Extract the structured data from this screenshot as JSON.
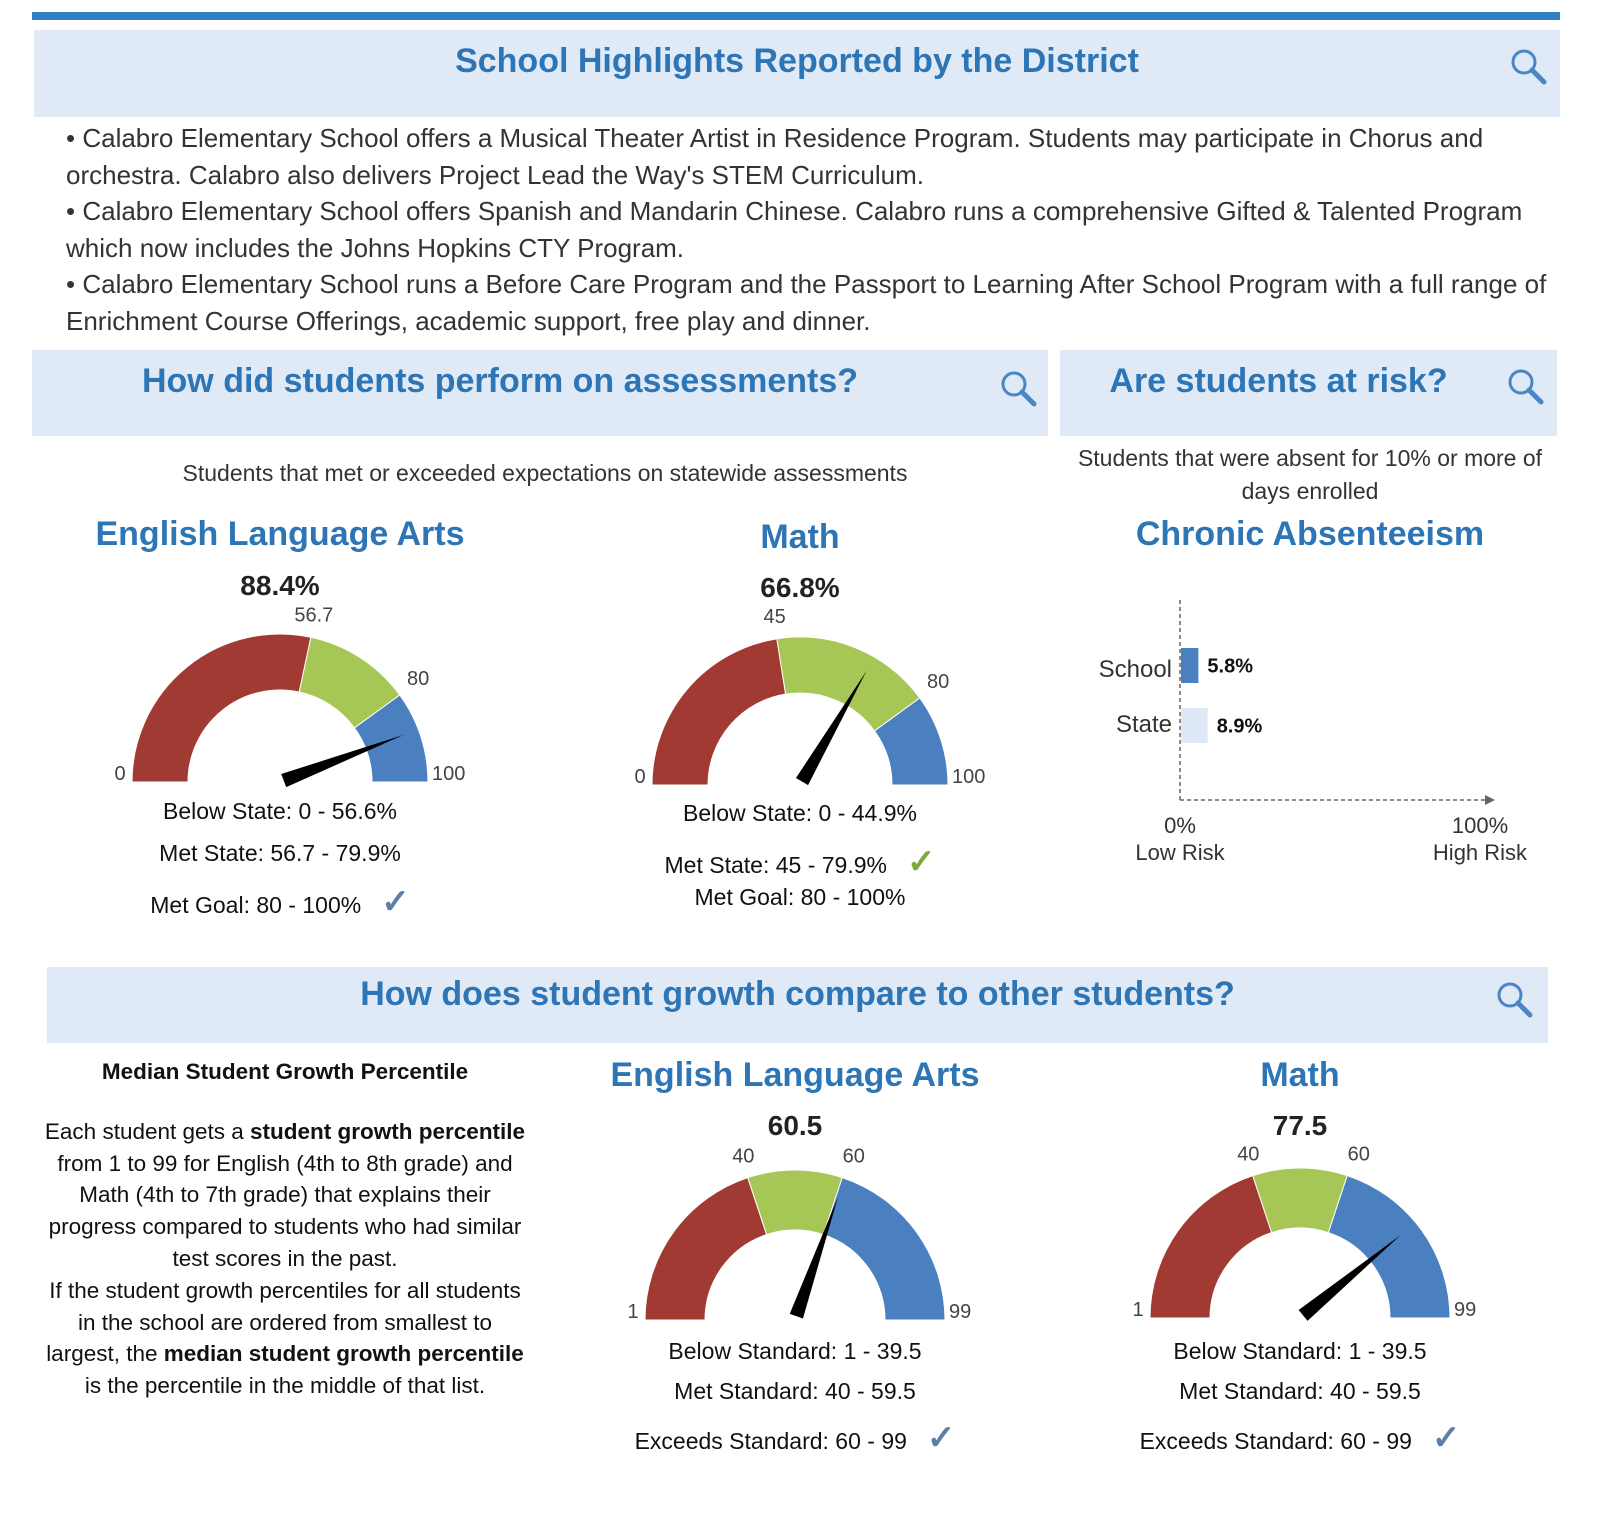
{
  "colors": {
    "accent": "#2e75b6",
    "header_bg": "#dfeaf6",
    "red": "#a03a32",
    "green": "#a6c655",
    "blue": "#4a80c0",
    "check_blue": "#5b7fa6",
    "check_green": "#7ea83a",
    "state_bar": "#dfe9f5"
  },
  "highlights": {
    "title": "School Highlights Reported by the District",
    "icon": "magnifier-icon",
    "bullets": [
      "• Calabro Elementary School offers a Musical Theater Artist in Residence Program. Students may participate in Chorus and orchestra. Calabro also delivers Project Lead the Way's STEM Curriculum.",
      "• Calabro Elementary School offers Spanish and Mandarin Chinese. Calabro runs a comprehensive Gifted & Talented Program which now includes the Johns Hopkins CTY Program.",
      "• Calabro Elementary School runs a Before Care Program and the Passport to Learning After School Program with a full range of Enrichment Course Offerings, academic support, free play and dinner."
    ]
  },
  "assessments": {
    "title": "How did students perform on assessments?",
    "subtitle": "Students that met or exceeded expectations on statewide assessments",
    "gauges": [
      {
        "title": "English Language Arts",
        "value_label": "88.4%",
        "value": 88.4,
        "min": 0,
        "max": 100,
        "bounds": [
          56.7,
          80
        ],
        "tick_labels": [
          "0",
          "56.7",
          "80",
          "100"
        ],
        "legend": [
          "Below State: 0 - 56.6%",
          "Met State: 56.7 - 79.9%",
          "Met Goal: 80 - 100%"
        ],
        "checked": 2,
        "check_color": "#5b7fa6"
      },
      {
        "title": "Math",
        "value_label": "66.8%",
        "value": 66.8,
        "min": 0,
        "max": 100,
        "bounds": [
          45,
          80
        ],
        "tick_labels": [
          "0",
          "45",
          "80",
          "100"
        ],
        "legend": [
          "Below State: 0 - 44.9%",
          "Met State: 45 - 79.9%",
          "Met Goal: 80 - 100%"
        ],
        "checked": 1,
        "check_color": "#7ea83a"
      }
    ]
  },
  "risk": {
    "title": "Are students at risk?",
    "subtitle": "Students that were absent for 10% or more of days enrolled",
    "chart_title": "Chronic Absenteeism",
    "chart_data": {
      "type": "bar",
      "orientation": "horizontal",
      "categories": [
        "School",
        "State"
      ],
      "values": [
        5.8,
        8.9
      ],
      "value_labels": [
        "5.8%",
        "8.9%"
      ],
      "xlim": [
        0,
        100
      ],
      "x_tick_labels": [
        "0%",
        "100%"
      ],
      "x_axis_labels": [
        "Low Risk",
        "High Risk"
      ],
      "colors": [
        "#4a80c0",
        "#dfe9f5"
      ]
    }
  },
  "growth": {
    "title": "How does student growth compare to other students?",
    "left_heading": "Median Student Growth Percentile",
    "para1": [
      "Each student gets a ",
      "student growth percentile",
      " from 1 to 99 for English (4th to 8th grade) and Math (4th to 7th grade) that explains their progress compared to students who had similar test scores in the past."
    ],
    "para2": [
      "If the student growth percentiles for all students in the school are ordered from smallest to largest, the ",
      "median student growth percentile",
      " is the percentile in the middle of that list."
    ],
    "gauges": [
      {
        "title": "English Language Arts",
        "value_label": "60.5",
        "value": 60.5,
        "min": 1,
        "max": 99,
        "bounds": [
          40,
          60
        ],
        "tick_labels": [
          "1",
          "40",
          "60",
          "99"
        ],
        "legend": [
          "Below Standard: 1 - 39.5",
          "Met Standard: 40 - 59.5",
          "Exceeds Standard: 60 - 99"
        ],
        "checked": 2,
        "check_color": "#5b7fa6"
      },
      {
        "title": "Math",
        "value_label": "77.5",
        "value": 77.5,
        "min": 1,
        "max": 99,
        "bounds": [
          40,
          60
        ],
        "tick_labels": [
          "1",
          "40",
          "60",
          "99"
        ],
        "legend": [
          "Below Standard: 1 - 39.5",
          "Met Standard: 40 - 59.5",
          "Exceeds Standard: 60 - 99"
        ],
        "checked": 2,
        "check_color": "#5b7fa6"
      }
    ]
  }
}
